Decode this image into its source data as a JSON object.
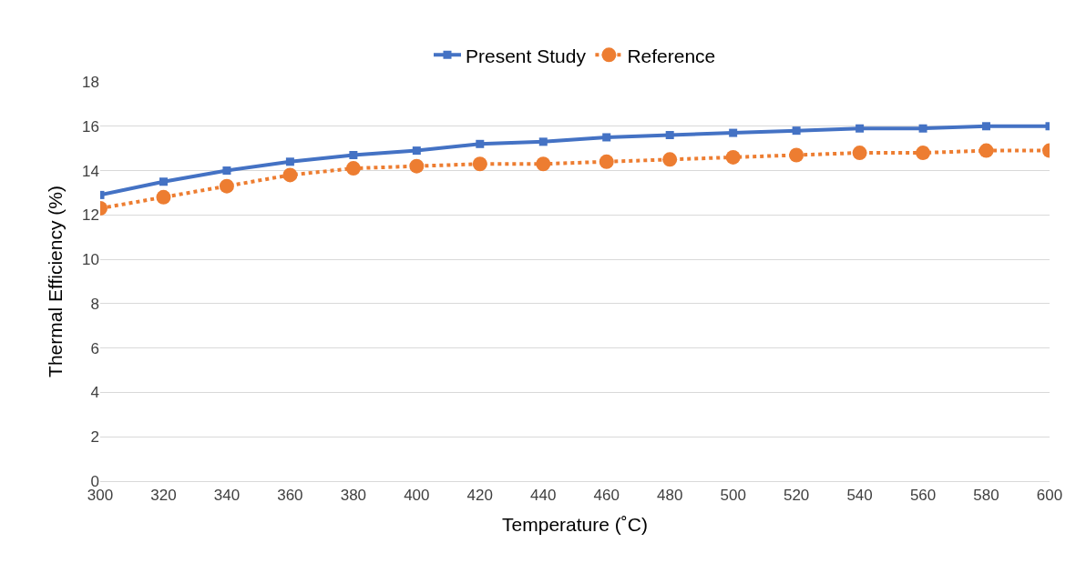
{
  "chart_data": {
    "type": "line",
    "xlabel": "Temperature (˚C)",
    "ylabel": "Thermal Efficiency (%)",
    "x": [
      300,
      320,
      340,
      360,
      380,
      400,
      420,
      440,
      460,
      480,
      500,
      520,
      540,
      560,
      580,
      600
    ],
    "series": [
      {
        "name": "Present Study",
        "color": "#4472c4",
        "marker": "square",
        "line_style": "solid",
        "values": [
          12.9,
          13.5,
          14.0,
          14.4,
          14.7,
          14.9,
          15.2,
          15.3,
          15.5,
          15.6,
          15.7,
          15.8,
          15.9,
          15.9,
          16.0,
          16.0
        ]
      },
      {
        "name": "Reference",
        "color": "#ed7d31",
        "marker": "circle",
        "line_style": "dotted",
        "values": [
          12.3,
          12.8,
          13.3,
          13.8,
          14.1,
          14.2,
          14.3,
          14.3,
          14.4,
          14.5,
          14.6,
          14.7,
          14.8,
          14.8,
          14.9,
          14.9
        ]
      }
    ],
    "xlim": [
      300,
      600
    ],
    "xticks": [
      300,
      320,
      340,
      360,
      380,
      400,
      420,
      440,
      460,
      480,
      500,
      520,
      540,
      560,
      580,
      600
    ],
    "ylim": [
      0,
      18
    ],
    "yticks": [
      0,
      2,
      4,
      6,
      8,
      10,
      12,
      14,
      16,
      18
    ],
    "grid": "y",
    "legend": "top"
  }
}
